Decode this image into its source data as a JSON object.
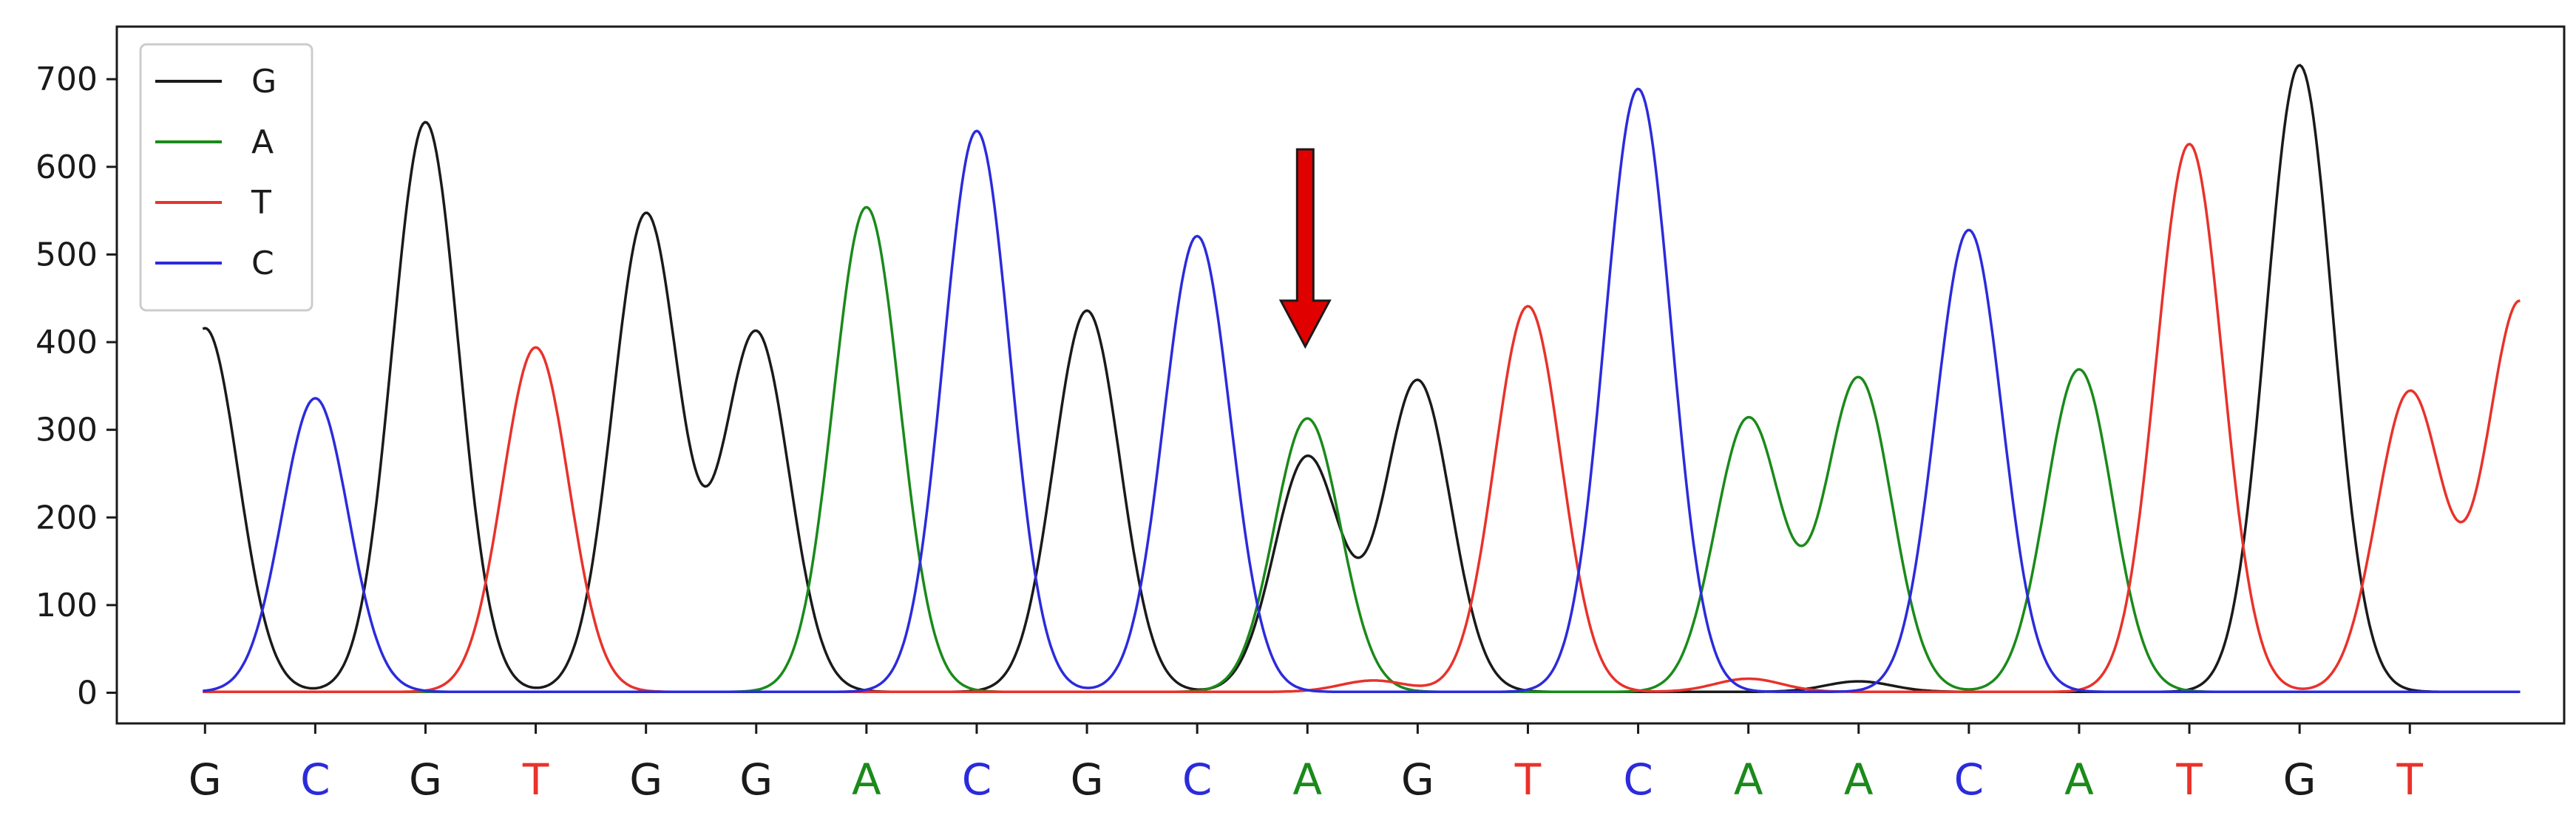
{
  "chart_data": {
    "type": "line",
    "title": "",
    "xlabel": "",
    "ylabel": "",
    "ylim": [
      -35,
      760
    ],
    "xlim": [
      -0.8,
      21.4
    ],
    "yticks": [
      0,
      100,
      200,
      300,
      400,
      500,
      600,
      700
    ],
    "grid": false,
    "legend_placement": "top-left",
    "x": [
      0,
      1,
      2,
      3,
      4,
      5,
      6,
      7,
      8,
      9,
      10,
      11,
      12,
      13,
      14,
      15,
      16,
      17,
      18,
      19,
      20
    ],
    "bases": [
      "G",
      "C",
      "G",
      "T",
      "G",
      "G",
      "A",
      "C",
      "G",
      "C",
      "A",
      "G",
      "T",
      "C",
      "A",
      "A",
      "C",
      "A",
      "T",
      "G",
      "T"
    ],
    "base_colors": {
      "G": "#1a1a1a",
      "A": "#1a8a1a",
      "T": "#e8322b",
      "C": "#2b2bdc"
    },
    "series": [
      {
        "name": "G",
        "color": "#1a1a1a",
        "peaks": [
          [
            0,
            415
          ],
          [
            2,
            650
          ],
          [
            4,
            545
          ],
          [
            5,
            410
          ],
          [
            8,
            435
          ],
          [
            10,
            268
          ],
          [
            11,
            355
          ],
          [
            15,
            12
          ],
          [
            19,
            715
          ]
        ]
      },
      {
        "name": "A",
        "color": "#1a8a1a",
        "peaks": [
          [
            6,
            553
          ],
          [
            10,
            312
          ],
          [
            14,
            312
          ],
          [
            15,
            358
          ],
          [
            17,
            368
          ]
        ]
      },
      {
        "name": "T",
        "color": "#e8322b",
        "peaks": [
          [
            3,
            393
          ],
          [
            10.6,
            13
          ],
          [
            12,
            440
          ],
          [
            14,
            15
          ],
          [
            18,
            625
          ],
          [
            20,
            342
          ],
          [
            21,
            445
          ]
        ]
      },
      {
        "name": "C",
        "color": "#2b2bdc",
        "peaks": [
          [
            1,
            335
          ],
          [
            7,
            640
          ],
          [
            9,
            520
          ],
          [
            13,
            688
          ],
          [
            16,
            527
          ]
        ]
      }
    ],
    "annotation": {
      "type": "arrow",
      "color": "#e00000",
      "x": 10,
      "y_top": 620,
      "y_bottom": 395
    }
  }
}
